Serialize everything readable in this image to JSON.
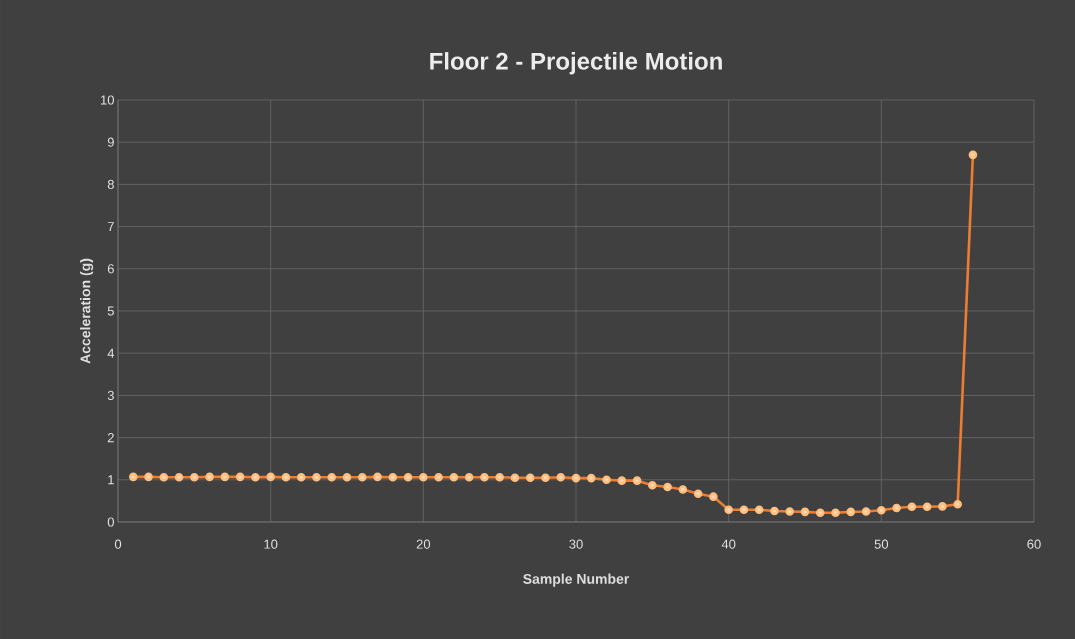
{
  "chart_data": {
    "type": "line",
    "title": "Floor 2 - Projectile Motion",
    "xlabel": "Sample Number",
    "ylabel": "Acceleration (g)",
    "x": [
      1,
      2,
      3,
      4,
      5,
      6,
      7,
      8,
      9,
      10,
      11,
      12,
      13,
      14,
      15,
      16,
      17,
      18,
      19,
      20,
      21,
      22,
      23,
      24,
      25,
      26,
      27,
      28,
      29,
      30,
      31,
      32,
      33,
      34,
      35,
      36,
      37,
      38,
      39,
      40,
      41,
      42,
      43,
      44,
      45,
      46,
      47,
      48,
      49,
      50,
      51,
      52,
      53,
      54,
      55,
      56
    ],
    "series": [
      {
        "color": "#ed7d31",
        "values": [
          1.07,
          1.07,
          1.06,
          1.06,
          1.06,
          1.07,
          1.07,
          1.07,
          1.06,
          1.07,
          1.06,
          1.06,
          1.06,
          1.06,
          1.06,
          1.06,
          1.07,
          1.06,
          1.06,
          1.06,
          1.06,
          1.06,
          1.06,
          1.06,
          1.06,
          1.05,
          1.05,
          1.05,
          1.06,
          1.04,
          1.04,
          1.0,
          0.98,
          0.98,
          0.87,
          0.83,
          0.77,
          0.67,
          0.6,
          0.29,
          0.29,
          0.29,
          0.26,
          0.25,
          0.24,
          0.22,
          0.22,
          0.24,
          0.25,
          0.28,
          0.33,
          0.36,
          0.36,
          0.37,
          0.42,
          8.7
        ]
      }
    ],
    "xlim": [
      0,
      60
    ],
    "xticks": [
      0,
      10,
      20,
      30,
      40,
      50,
      60
    ],
    "ylim": [
      0,
      10
    ],
    "yticks": [
      0,
      1,
      2,
      3,
      4,
      5,
      6,
      7,
      8,
      9,
      10
    ],
    "grid": true,
    "marker": "circle",
    "line_style": "solid"
  }
}
